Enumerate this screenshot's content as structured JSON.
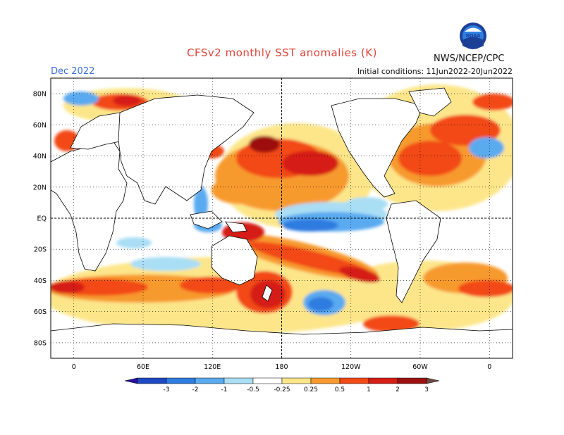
{
  "header": {
    "title": "CFSv2 monthly SST anomalies (K)",
    "valid_month": "Dec 2022",
    "initial_conditions": "Initial conditions: 11Jun2022-20Jun2022",
    "agency": "NWS/NCEP/CPC",
    "logo_text": "NOAA"
  },
  "map": {
    "projection": "equirectangular",
    "lat_range": [
      -90,
      90
    ],
    "lon_range": [
      -20,
      380
    ],
    "lat_ticks": [
      "80N",
      "60N",
      "40N",
      "20N",
      "EQ",
      "20S",
      "40S",
      "60S",
      "80S"
    ],
    "lon_ticks": [
      "0",
      "60E",
      "120E",
      "180",
      "120W",
      "60W",
      "0"
    ],
    "grid": "dotted",
    "land_fill": "#ffffff",
    "features": [
      {
        "name": "warm-n-pacific",
        "sign": "positive",
        "lon": [
          130,
          230
        ],
        "lat": [
          15,
          50
        ]
      },
      {
        "name": "cool-eq-pacific",
        "sign": "negative",
        "lon": [
          180,
          280
        ],
        "lat": [
          -15,
          15
        ]
      },
      {
        "name": "warm-s-pacific-band",
        "sign": "positive",
        "lon": [
          145,
          260
        ],
        "lat": [
          -45,
          -5
        ]
      },
      {
        "name": "warm-southern-ocean",
        "sign": "positive",
        "lon": [
          0,
          180
        ],
        "lat": [
          -55,
          -35
        ]
      },
      {
        "name": "warm-n-atlantic",
        "sign": "positive",
        "lon": [
          280,
          360
        ],
        "lat": [
          25,
          65
        ]
      },
      {
        "name": "cool-s-pacific",
        "sign": "negative",
        "lon": [
          200,
          240
        ],
        "lat": [
          -62,
          -45
        ]
      }
    ]
  },
  "colorbar": {
    "labels": [
      "-3",
      "-2",
      "-1",
      "-0.5",
      "-0.25",
      "0.25",
      "0.5",
      "1",
      "2",
      "3"
    ],
    "colors": [
      "#2b0f9e",
      "#1f48c4",
      "#2d7ce0",
      "#5aaaf0",
      "#a9def5",
      "#ffffff",
      "#fde68a",
      "#f79a2e",
      "#f24a16",
      "#d51f16",
      "#9d1010",
      "#6f4a40"
    ]
  }
}
